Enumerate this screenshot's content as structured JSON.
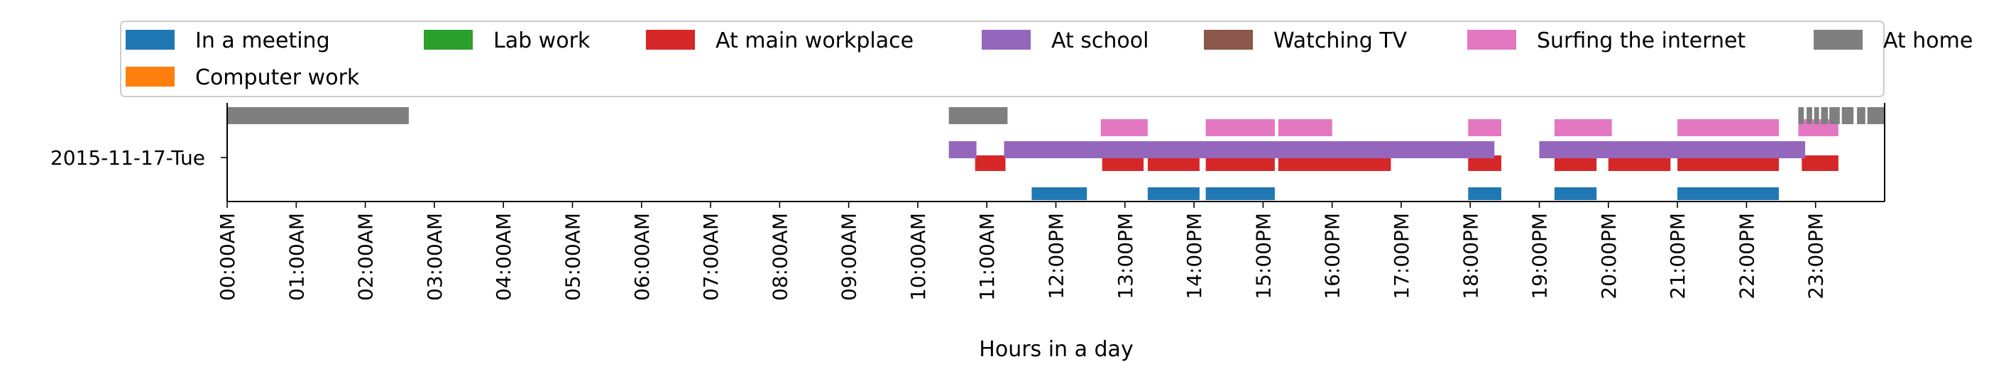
{
  "chart_data": {
    "type": "timeline",
    "title": "",
    "xlabel": "Hours in a day",
    "ylabel": "",
    "xlim": [
      0,
      24
    ],
    "grid": false,
    "legend_position": "top",
    "rows": [
      "2015-11-17-Tue"
    ],
    "x_ticks": [
      {
        "value": 0,
        "label": "00:00AM"
      },
      {
        "value": 1,
        "label": "01:00AM"
      },
      {
        "value": 2,
        "label": "02:00AM"
      },
      {
        "value": 3,
        "label": "03:00AM"
      },
      {
        "value": 4,
        "label": "04:00AM"
      },
      {
        "value": 5,
        "label": "05:00AM"
      },
      {
        "value": 6,
        "label": "06:00AM"
      },
      {
        "value": 7,
        "label": "07:00AM"
      },
      {
        "value": 8,
        "label": "08:00AM"
      },
      {
        "value": 9,
        "label": "09:00AM"
      },
      {
        "value": 10,
        "label": "10:00AM"
      },
      {
        "value": 11,
        "label": "11:00AM"
      },
      {
        "value": 12,
        "label": "12:00PM"
      },
      {
        "value": 13,
        "label": "13:00PM"
      },
      {
        "value": 14,
        "label": "14:00PM"
      },
      {
        "value": 15,
        "label": "15:00PM"
      },
      {
        "value": 16,
        "label": "16:00PM"
      },
      {
        "value": 17,
        "label": "17:00PM"
      },
      {
        "value": 18,
        "label": "18:00PM"
      },
      {
        "value": 19,
        "label": "19:00PM"
      },
      {
        "value": 20,
        "label": "20:00PM"
      },
      {
        "value": 21,
        "label": "21:00PM"
      },
      {
        "value": 22,
        "label": "22:00PM"
      },
      {
        "value": 23,
        "label": "23:00PM"
      }
    ],
    "series": [
      {
        "name": "In a meeting",
        "color": "#1f77b4",
        "intervals": [
          [
            11.65,
            12.45
          ],
          [
            13.33,
            14.08
          ],
          [
            14.17,
            15.17
          ],
          [
            17.97,
            18.45
          ],
          [
            19.22,
            19.83
          ],
          [
            21.0,
            22.47
          ]
        ]
      },
      {
        "name": "Lab work",
        "color": "#2ca02c",
        "intervals": []
      },
      {
        "name": "At main workplace",
        "color": "#d62728",
        "intervals": [
          [
            10.83,
            11.27
          ],
          [
            12.67,
            13.27
          ],
          [
            13.33,
            14.08
          ],
          [
            14.17,
            15.17
          ],
          [
            15.22,
            16.85
          ],
          [
            17.97,
            18.45
          ],
          [
            19.22,
            19.83
          ],
          [
            20.0,
            20.9
          ],
          [
            21.0,
            22.47
          ],
          [
            22.8,
            23.33
          ]
        ]
      },
      {
        "name": "At school",
        "color": "#9467bd",
        "intervals": [
          [
            10.45,
            10.85
          ],
          [
            11.25,
            18.35
          ],
          [
            19.0,
            22.85
          ]
        ]
      },
      {
        "name": "Watching TV",
        "color": "#8c564b",
        "intervals": []
      },
      {
        "name": "Surfing the internet",
        "color": "#e377c2",
        "intervals": [
          [
            12.65,
            13.33
          ],
          [
            14.17,
            15.17
          ],
          [
            15.22,
            16.0
          ],
          [
            17.97,
            18.45
          ],
          [
            19.22,
            20.05
          ],
          [
            21.0,
            22.47
          ],
          [
            22.75,
            23.33
          ]
        ]
      },
      {
        "name": "At home",
        "color": "#7f7f7f",
        "intervals": [
          [
            0.0,
            2.63
          ],
          [
            10.45,
            11.3
          ],
          [
            22.75,
            22.83
          ],
          [
            22.87,
            22.95
          ],
          [
            22.98,
            23.05
          ],
          [
            23.08,
            23.18
          ],
          [
            23.2,
            23.35
          ],
          [
            23.38,
            23.55
          ],
          [
            23.6,
            23.72
          ],
          [
            23.75,
            24.0
          ]
        ]
      },
      {
        "name": "Computer work",
        "color": "#ff7f0e",
        "intervals": []
      }
    ]
  }
}
